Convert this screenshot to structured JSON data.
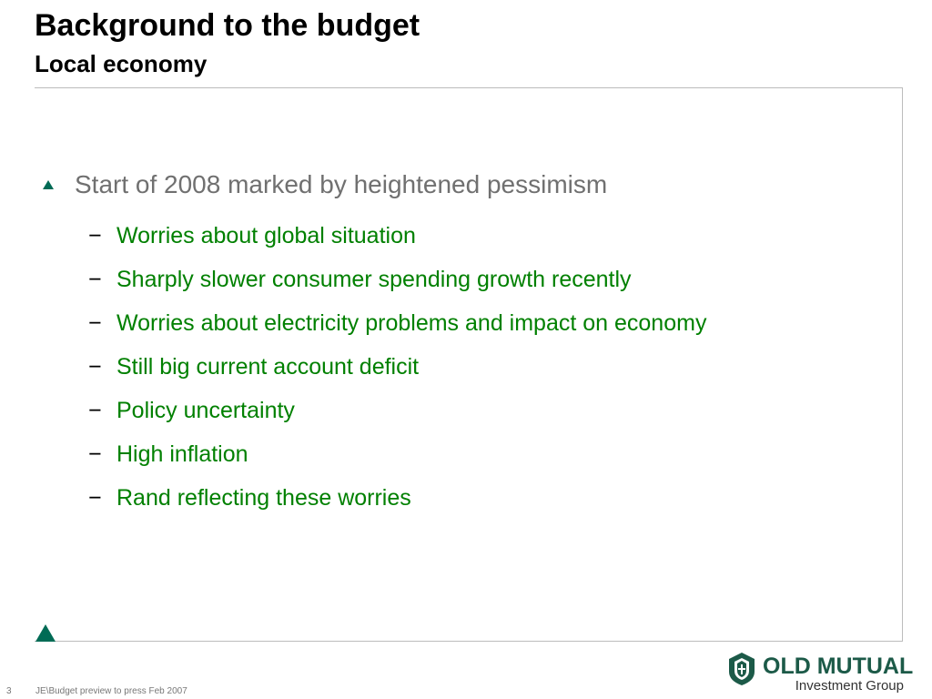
{
  "slide": {
    "title": "Background to the budget",
    "subtitle": "Local economy",
    "main_bullet": "Start of 2008 marked by heightened pessimism",
    "sub_bullets": [
      "Worries about global situation",
      "Sharply slower consumer spending growth recently",
      "Worries about electricity problems and impact on economy",
      "Still big current account deficit",
      "Policy uncertainty",
      "High inflation",
      "Rand reflecting these worries"
    ],
    "dash": "−"
  },
  "logo": {
    "name": "OLD MUTUAL",
    "tagline": "Investment Group"
  },
  "footer": {
    "page_number": "3",
    "text": "JE\\Budget preview to press Feb 2007"
  },
  "colors": {
    "accent": "#006b55",
    "sub_bullet_text": "#008000",
    "main_bullet_text": "#707070"
  }
}
